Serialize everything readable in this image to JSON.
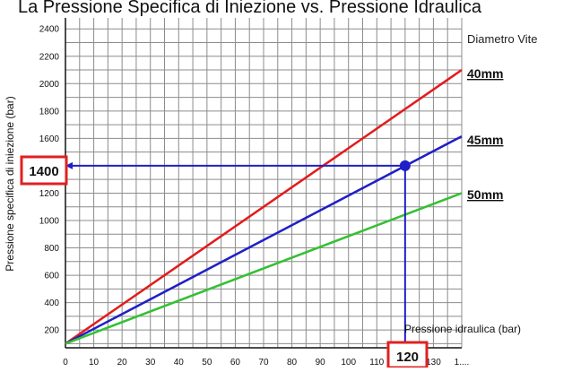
{
  "chart_data": {
    "type": "line",
    "title": "La Pressione Specifica di Iniezione vs. Pressione Idraulica",
    "xlabel": "Pressione idraulica  (bar)",
    "ylabel": "Pressione specifica di iniezione  (bar)",
    "legend_title": "Diametro Vite",
    "x_ticks": [
      "0",
      "10",
      "20",
      "30",
      "40",
      "50",
      "60",
      "70",
      "80",
      "90",
      "100",
      "110",
      "120",
      "130",
      "1...."
    ],
    "y_ticks": [
      "200",
      "400",
      "600",
      "800",
      "1000",
      "1200",
      "1400",
      "1600",
      "1800",
      "2000",
      "2200",
      "2400"
    ],
    "xlim": [
      0,
      140
    ],
    "ylim": [
      70,
      2480
    ],
    "grid": true,
    "series": [
      {
        "name": "40mm",
        "color": "#e31b1b",
        "x": [
          0,
          140
        ],
        "y": [
          100,
          2100
        ]
      },
      {
        "name": "45mm",
        "color": "#1f1fc8",
        "x": [
          0,
          140
        ],
        "y": [
          100,
          1615
        ]
      },
      {
        "name": "50mm",
        "color": "#33c133",
        "x": [
          0,
          140
        ],
        "y": [
          100,
          1200
        ]
      }
    ],
    "highlight": {
      "x": 120,
      "y": 1400,
      "x_label": "120",
      "y_label": "1400",
      "color": "#1f1fc8",
      "box_color": "#e02020"
    }
  }
}
